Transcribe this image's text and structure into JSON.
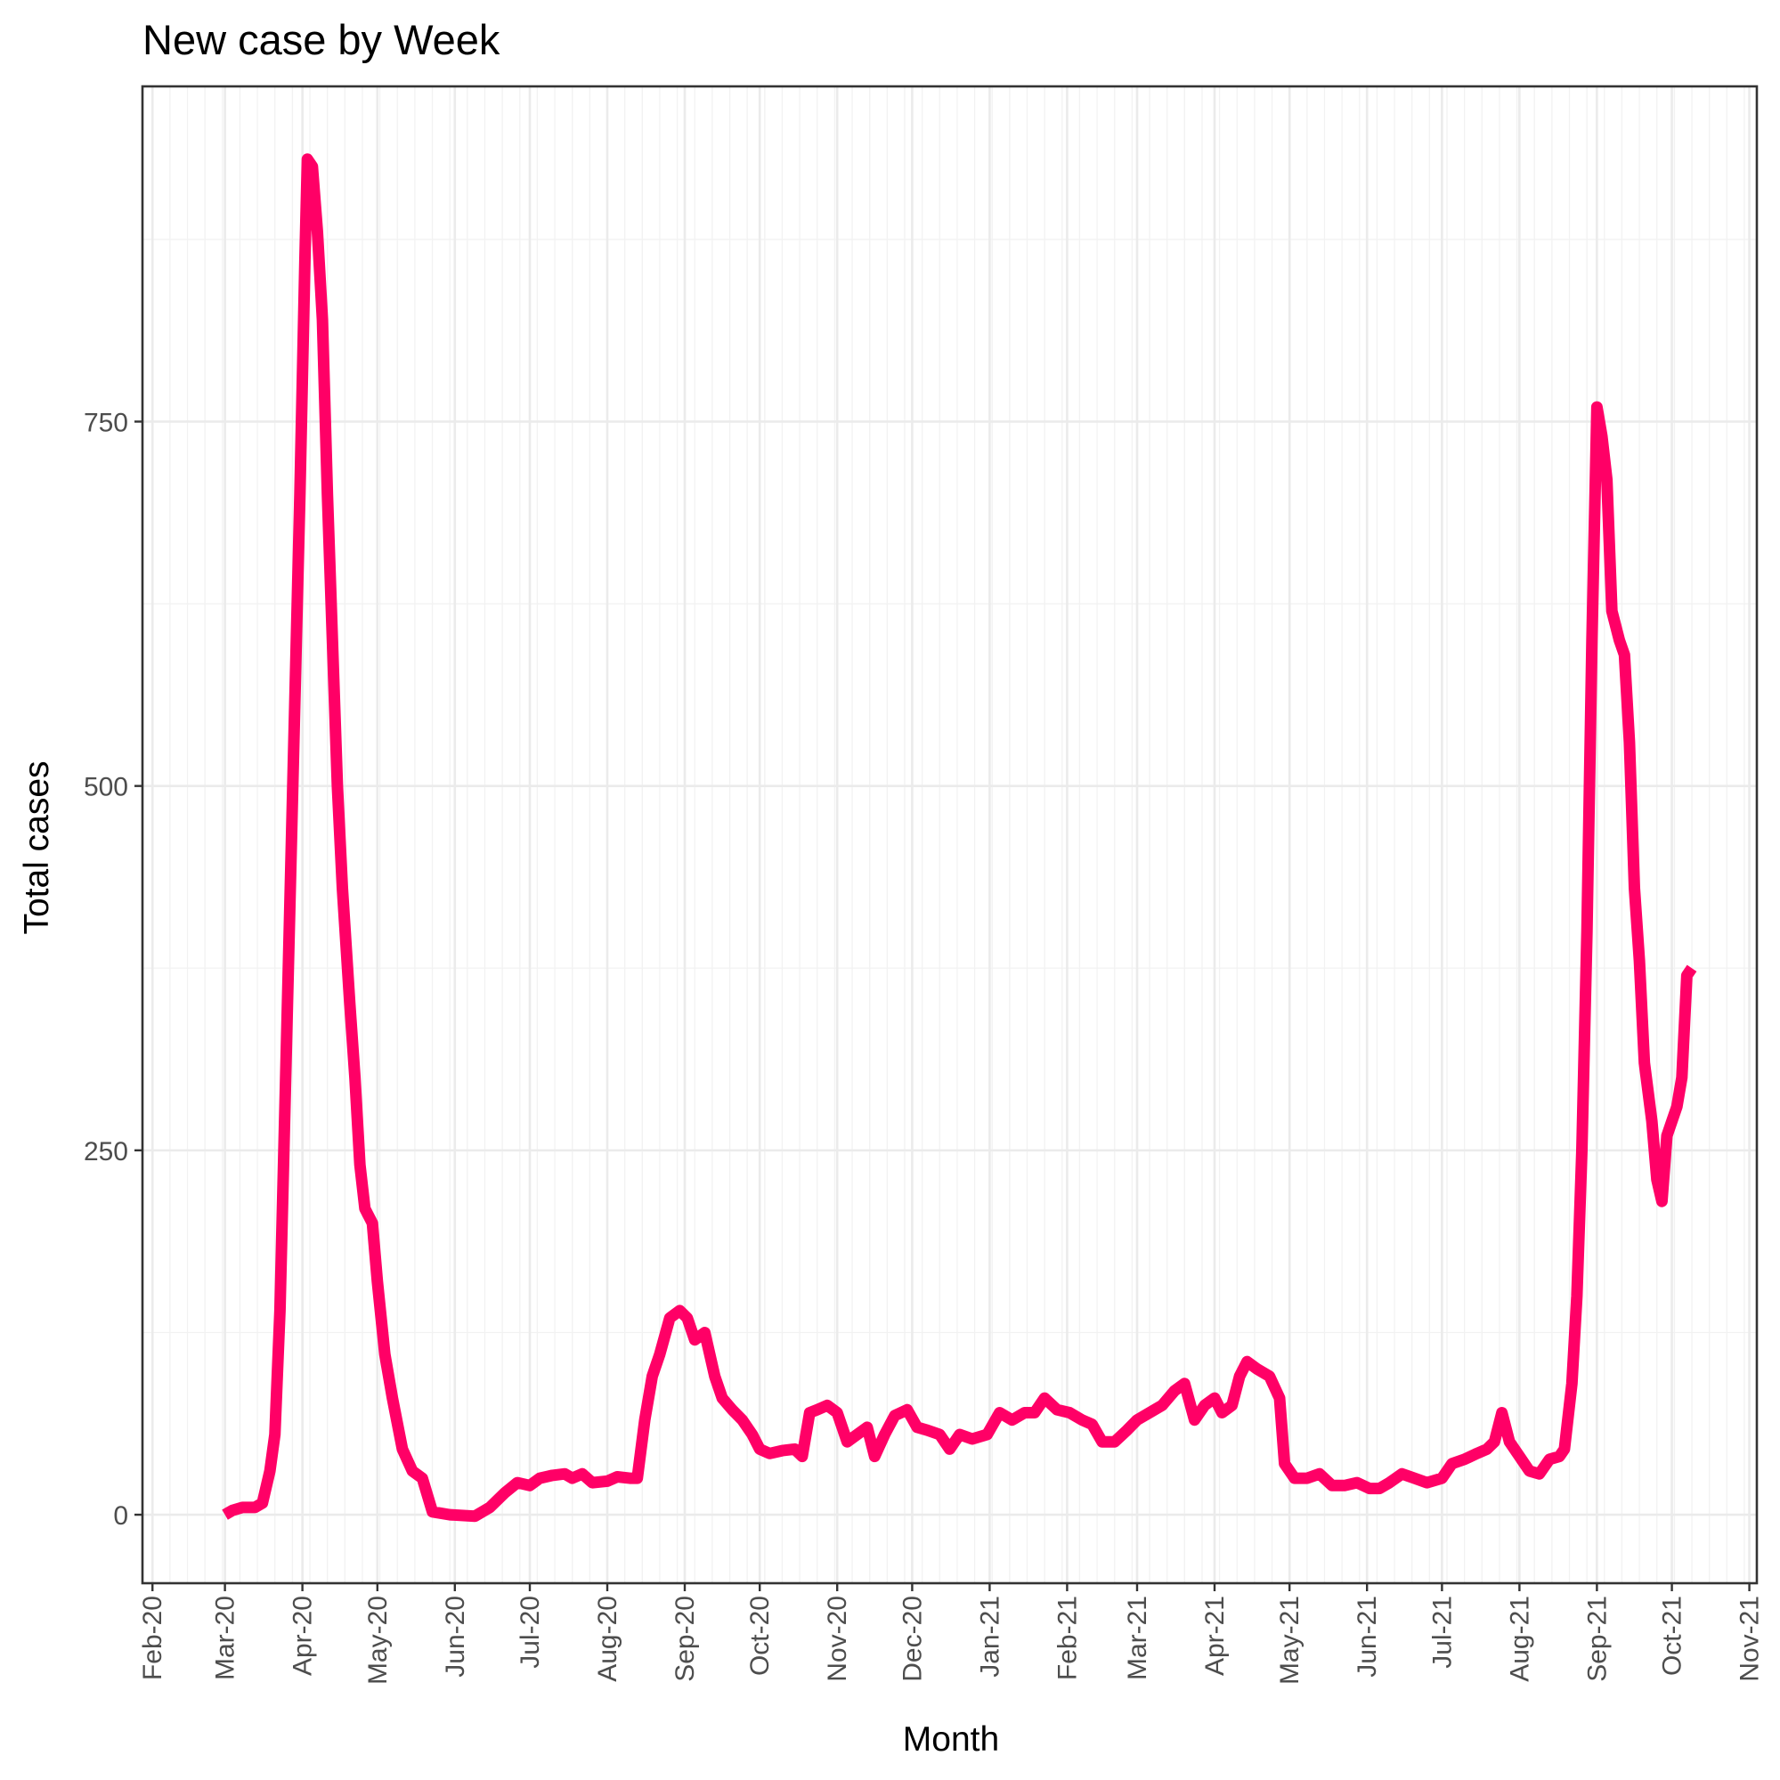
{
  "chart_data": {
    "type": "line",
    "title": "New case by Week",
    "xlabel": "Month",
    "ylabel": "Total cases",
    "x_range": [
      "2020-01-28",
      "2021-11-04"
    ],
    "ylim": [
      -47,
      980
    ],
    "y_ticks": [
      0,
      250,
      500,
      750
    ],
    "x_tick_labels": [
      "Feb-20",
      "Mar-20",
      "Apr-20",
      "May-20",
      "Jun-20",
      "Jul-20",
      "Aug-20",
      "Sep-20",
      "Oct-20",
      "Nov-20",
      "Dec-20",
      "Jan-21",
      "Feb-21",
      "Mar-21",
      "Apr-21",
      "May-21",
      "Jun-21",
      "Jul-21",
      "Aug-21",
      "Sep-21",
      "Oct-21",
      "Nov-21"
    ],
    "x_tick_dates": [
      "2020-02-01",
      "2020-03-01",
      "2020-04-01",
      "2020-05-01",
      "2020-06-01",
      "2020-07-01",
      "2020-08-01",
      "2020-09-01",
      "2020-10-01",
      "2020-11-01",
      "2020-12-01",
      "2021-01-01",
      "2021-02-01",
      "2021-03-01",
      "2021-04-01",
      "2021-05-01",
      "2021-06-01",
      "2021-07-01",
      "2021-08-01",
      "2021-09-01",
      "2021-10-01",
      "2021-11-01"
    ],
    "grid": true,
    "series": [
      {
        "color": "#ff0066",
        "points": [
          [
            "2020-03-01",
            0
          ],
          [
            "2020-03-04",
            3
          ],
          [
            "2020-03-08",
            5
          ],
          [
            "2020-03-13",
            5
          ],
          [
            "2020-03-16",
            8
          ],
          [
            "2020-03-19",
            30
          ],
          [
            "2020-03-21",
            55
          ],
          [
            "2020-03-23",
            140
          ],
          [
            "2020-03-25",
            280
          ],
          [
            "2020-03-27",
            420
          ],
          [
            "2020-03-29",
            560
          ],
          [
            "2020-03-31",
            700
          ],
          [
            "2020-04-02",
            860
          ],
          [
            "2020-04-03",
            930
          ],
          [
            "2020-04-05",
            925
          ],
          [
            "2020-04-07",
            880
          ],
          [
            "2020-04-09",
            820
          ],
          [
            "2020-04-11",
            700
          ],
          [
            "2020-04-13",
            600
          ],
          [
            "2020-04-15",
            500
          ],
          [
            "2020-04-17",
            430
          ],
          [
            "2020-04-20",
            350
          ],
          [
            "2020-04-22",
            300
          ],
          [
            "2020-04-24",
            240
          ],
          [
            "2020-04-26",
            210
          ],
          [
            "2020-04-29",
            200
          ],
          [
            "2020-05-01",
            160
          ],
          [
            "2020-05-04",
            110
          ],
          [
            "2020-05-07",
            80
          ],
          [
            "2020-05-11",
            45
          ],
          [
            "2020-05-15",
            30
          ],
          [
            "2020-05-19",
            25
          ],
          [
            "2020-05-23",
            2
          ],
          [
            "2020-05-30",
            0
          ],
          [
            "2020-06-09",
            -1
          ],
          [
            "2020-06-15",
            5
          ],
          [
            "2020-06-21",
            15
          ],
          [
            "2020-06-26",
            22
          ],
          [
            "2020-07-01",
            20
          ],
          [
            "2020-07-05",
            25
          ],
          [
            "2020-07-10",
            27
          ],
          [
            "2020-07-15",
            28
          ],
          [
            "2020-07-18",
            25
          ],
          [
            "2020-07-22",
            28
          ],
          [
            "2020-07-26",
            22
          ],
          [
            "2020-08-01",
            23
          ],
          [
            "2020-08-05",
            26
          ],
          [
            "2020-08-10",
            25
          ],
          [
            "2020-08-13",
            25
          ],
          [
            "2020-08-16",
            65
          ],
          [
            "2020-08-19",
            95
          ],
          [
            "2020-08-22",
            110
          ],
          [
            "2020-08-26",
            135
          ],
          [
            "2020-08-30",
            140
          ],
          [
            "2020-09-02",
            135
          ],
          [
            "2020-09-05",
            120
          ],
          [
            "2020-09-09",
            125
          ],
          [
            "2020-09-13",
            95
          ],
          [
            "2020-09-16",
            80
          ],
          [
            "2020-09-20",
            72
          ],
          [
            "2020-09-24",
            65
          ],
          [
            "2020-09-28",
            55
          ],
          [
            "2020-10-01",
            45
          ],
          [
            "2020-10-05",
            42
          ],
          [
            "2020-10-10",
            44
          ],
          [
            "2020-10-15",
            45
          ],
          [
            "2020-10-18",
            40
          ],
          [
            "2020-10-21",
            70
          ],
          [
            "2020-10-24",
            72
          ],
          [
            "2020-10-28",
            75
          ],
          [
            "2020-11-01",
            70
          ],
          [
            "2020-11-05",
            50
          ],
          [
            "2020-11-09",
            55
          ],
          [
            "2020-11-13",
            60
          ],
          [
            "2020-11-16",
            40
          ],
          [
            "2020-11-20",
            55
          ],
          [
            "2020-11-24",
            68
          ],
          [
            "2020-11-29",
            72
          ],
          [
            "2020-12-03",
            60
          ],
          [
            "2020-12-07",
            58
          ],
          [
            "2020-12-12",
            55
          ],
          [
            "2020-12-16",
            45
          ],
          [
            "2020-12-20",
            55
          ],
          [
            "2020-12-25",
            52
          ],
          [
            "2020-12-31",
            55
          ],
          [
            "2021-01-05",
            70
          ],
          [
            "2021-01-10",
            65
          ],
          [
            "2021-01-15",
            70
          ],
          [
            "2021-01-19",
            70
          ],
          [
            "2021-01-23",
            80
          ],
          [
            "2021-01-28",
            72
          ],
          [
            "2021-02-02",
            70
          ],
          [
            "2021-02-07",
            65
          ],
          [
            "2021-02-11",
            62
          ],
          [
            "2021-02-15",
            50
          ],
          [
            "2021-02-20",
            50
          ],
          [
            "2021-02-25",
            58
          ],
          [
            "2021-03-01",
            65
          ],
          [
            "2021-03-06",
            70
          ],
          [
            "2021-03-11",
            75
          ],
          [
            "2021-03-16",
            85
          ],
          [
            "2021-03-20",
            90
          ],
          [
            "2021-03-24",
            65
          ],
          [
            "2021-03-28",
            75
          ],
          [
            "2021-04-01",
            80
          ],
          [
            "2021-04-04",
            70
          ],
          [
            "2021-04-08",
            75
          ],
          [
            "2021-04-11",
            95
          ],
          [
            "2021-04-14",
            105
          ],
          [
            "2021-04-18",
            100
          ],
          [
            "2021-04-23",
            95
          ],
          [
            "2021-04-27",
            80
          ],
          [
            "2021-04-29",
            35
          ],
          [
            "2021-05-03",
            25
          ],
          [
            "2021-05-08",
            25
          ],
          [
            "2021-05-13",
            28
          ],
          [
            "2021-05-18",
            20
          ],
          [
            "2021-05-23",
            20
          ],
          [
            "2021-05-28",
            22
          ],
          [
            "2021-06-02",
            18
          ],
          [
            "2021-06-06",
            18
          ],
          [
            "2021-06-10",
            22
          ],
          [
            "2021-06-15",
            28
          ],
          [
            "2021-06-20",
            25
          ],
          [
            "2021-06-25",
            22
          ],
          [
            "2021-07-01",
            25
          ],
          [
            "2021-07-05",
            35
          ],
          [
            "2021-07-10",
            38
          ],
          [
            "2021-07-15",
            42
          ],
          [
            "2021-07-19",
            45
          ],
          [
            "2021-07-22",
            50
          ],
          [
            "2021-07-25",
            70
          ],
          [
            "2021-07-28",
            50
          ],
          [
            "2021-08-01",
            40
          ],
          [
            "2021-08-05",
            30
          ],
          [
            "2021-08-09",
            28
          ],
          [
            "2021-08-13",
            38
          ],
          [
            "2021-08-17",
            40
          ],
          [
            "2021-08-19",
            45
          ],
          [
            "2021-08-22",
            90
          ],
          [
            "2021-08-24",
            150
          ],
          [
            "2021-08-26",
            250
          ],
          [
            "2021-08-28",
            400
          ],
          [
            "2021-08-30",
            600
          ],
          [
            "2021-09-01",
            760
          ],
          [
            "2021-09-03",
            740
          ],
          [
            "2021-09-05",
            710
          ],
          [
            "2021-09-07",
            620
          ],
          [
            "2021-09-10",
            600
          ],
          [
            "2021-09-12",
            590
          ],
          [
            "2021-09-14",
            530
          ],
          [
            "2021-09-16",
            430
          ],
          [
            "2021-09-18",
            380
          ],
          [
            "2021-09-20",
            310
          ],
          [
            "2021-09-23",
            270
          ],
          [
            "2021-09-25",
            230
          ],
          [
            "2021-09-27",
            215
          ],
          [
            "2021-09-29",
            260
          ],
          [
            "2021-10-01",
            270
          ],
          [
            "2021-10-03",
            280
          ],
          [
            "2021-10-05",
            300
          ],
          [
            "2021-10-07",
            370
          ],
          [
            "2021-10-09",
            375
          ]
        ]
      }
    ]
  }
}
